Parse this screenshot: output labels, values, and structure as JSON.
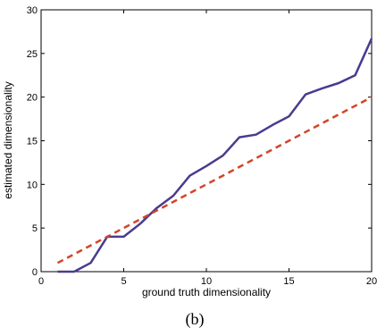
{
  "chart_data": {
    "type": "line",
    "title": "",
    "xlabel": "ground truth dimensionality",
    "ylabel": "estimated dimensionality",
    "caption": "(b)",
    "xlim": [
      0,
      20
    ],
    "ylim": [
      0,
      30
    ],
    "xticks": [
      0,
      5,
      10,
      15,
      20
    ],
    "yticks": [
      0,
      5,
      10,
      15,
      20,
      25,
      30
    ],
    "grid": false,
    "series": [
      {
        "color": "#4a3b8f",
        "style": "solid",
        "x": [
          1,
          2,
          3,
          4,
          5,
          6,
          7,
          8,
          9,
          10,
          11,
          12,
          13,
          14,
          15,
          16,
          17,
          18,
          19,
          20
        ],
        "y": [
          0,
          0,
          1,
          4,
          4,
          5.5,
          7.3,
          8.7,
          11,
          12.1,
          13.3,
          15.4,
          15.7,
          16.8,
          17.8,
          20.3,
          21,
          21.6,
          22.5,
          26.7
        ]
      },
      {
        "color": "#d2452a",
        "style": "dashed",
        "x": [
          1,
          20
        ],
        "y": [
          1,
          20
        ]
      }
    ]
  }
}
